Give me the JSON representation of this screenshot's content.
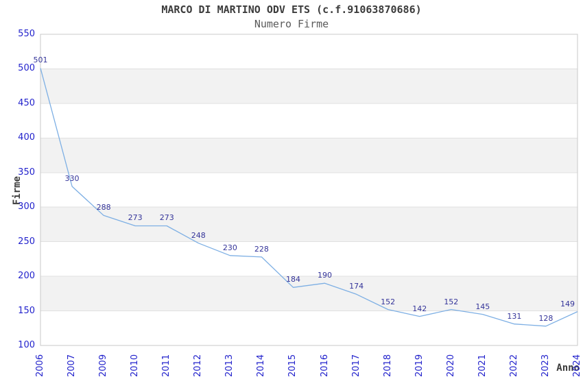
{
  "chart_data": {
    "type": "line",
    "title": "MARCO DI MARTINO ODV ETS (c.f.91063870686)",
    "subtitle": "Numero Firme",
    "xlabel": "Anno",
    "ylabel": "Firme",
    "categories": [
      "2006",
      "2007",
      "2009",
      "2010",
      "2011",
      "2012",
      "2013",
      "2014",
      "2015",
      "2016",
      "2017",
      "2018",
      "2019",
      "2020",
      "2021",
      "2022",
      "2023",
      "2024"
    ],
    "values": [
      501,
      330,
      288,
      273,
      273,
      248,
      230,
      228,
      184,
      190,
      174,
      152,
      142,
      152,
      145,
      131,
      128,
      149
    ],
    "series_name": "Numero Firme",
    "ylim": [
      100,
      550
    ],
    "yticks": [
      550,
      500,
      450,
      400,
      350,
      300,
      250,
      200,
      150,
      100
    ],
    "ytick_step": 50,
    "grid": true,
    "alternating_bands": true,
    "legend": "none",
    "data_labels_visible": true
  },
  "colors": {
    "line": "#7dafe4",
    "band": "#f2f2f2",
    "gridline": "#e0e0e0",
    "border": "#c8c8c8",
    "tick_label": "#2222cc",
    "data_label": "#333399",
    "title": "#3c3c3c",
    "subtitle": "#5a5a5a",
    "background": "#ffffff"
  }
}
